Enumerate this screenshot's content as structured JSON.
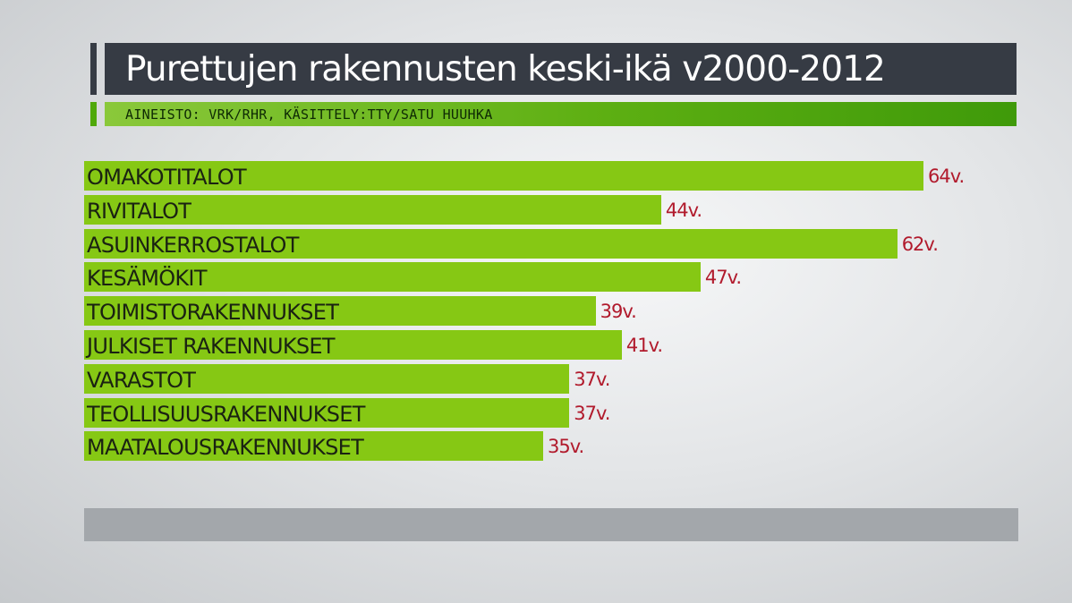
{
  "title": "Purettujen rakennusten keski-ikä v2000-2012",
  "source": "AINEISTO: VRK/RHR, KÄSITTELY:TTY/SATU HUUHKA",
  "colors": {
    "bar": "#86c814",
    "value_text": "#b11a2c",
    "title_background": "#363b44",
    "source_background": "#5daf12"
  },
  "chart_data": {
    "type": "bar",
    "orientation": "horizontal",
    "title": "Purettujen rakennusten keski-ikä v2000-2012",
    "categories": [
      "OMAKOTITALOT",
      "RIVITALOT",
      "ASUINKERROSTALOT",
      "KESÄMÖKIT",
      "TOIMISTORAKENNUKSET",
      "JULKISET RAKENNUKSET",
      "VARASTOT",
      "TEOLLISUUSRAKENNUKSET",
      "MAATALOUSRAKENNUKSET"
    ],
    "values": [
      64,
      44,
      62,
      47,
      39,
      41,
      37,
      37,
      35
    ],
    "value_labels": [
      "64v.",
      "44v.",
      "62v.",
      "47v.",
      "39v.",
      "41v.",
      "37v.",
      "37v.",
      "35v."
    ],
    "xlim": [
      0,
      64
    ],
    "grid": false
  }
}
